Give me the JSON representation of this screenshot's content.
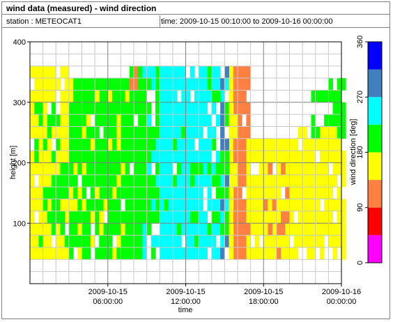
{
  "header": {
    "title": "wind data (measured) - wind direction",
    "station": "station : METEOCAT1",
    "time_range": "time: 2009-10-15 00:10:00 to 2009-10-16 00:00:00"
  },
  "chart_data": {
    "type": "heatmap",
    "title": "wind data (measured) - wind direction",
    "xlabel": "time",
    "ylabel": "height [m]",
    "colorbar_label": "wind direction [deg]",
    "xlim": [
      0,
      24
    ],
    "ylim": [
      0,
      400
    ],
    "x_ticks": [
      {
        "value": 6,
        "line1": "2009-10-15",
        "line2": "06:00:00"
      },
      {
        "value": 12,
        "line1": "2009-10-15",
        "line2": "12:00:00"
      },
      {
        "value": 18,
        "line1": "2009-10-15",
        "line2": "18:00:00"
      },
      {
        "value": 24,
        "line1": "2009-10-16",
        "line2": "00:00:00"
      }
    ],
    "y_ticks": [
      100,
      200,
      300,
      400
    ],
    "colorbar": {
      "range": [
        0,
        360
      ],
      "ticks": [
        0,
        90,
        180,
        270,
        360
      ],
      "bins": [
        {
          "from": 0,
          "to": 45,
          "color": "#ff00ff"
        },
        {
          "from": 45,
          "to": 90,
          "color": "#ff0000"
        },
        {
          "from": 90,
          "to": 135,
          "color": "#ff8040"
        },
        {
          "from": 135,
          "to": 180,
          "color": "#ffff00"
        },
        {
          "from": 180,
          "to": 225,
          "color": "#00ff00"
        },
        {
          "from": 225,
          "to": 270,
          "color": "#00ffff"
        },
        {
          "from": 270,
          "to": 315,
          "color": "#4080c0"
        },
        {
          "from": 315,
          "to": 360,
          "color": "#0000ff"
        }
      ]
    },
    "grid": true,
    "cell_duration_h": 0.3333,
    "height_levels": {
      "min": 40,
      "max": 360,
      "step": 20
    },
    "regions": [
      {
        "t0": 0,
        "t1": 3.0,
        "h0": 40,
        "h1": 360,
        "dir": 160,
        "density": 0.85
      },
      {
        "t0": 0.3,
        "t1": 3.0,
        "h0": 60,
        "h1": 300,
        "dir": 200,
        "density": 0.4
      },
      {
        "t0": 3.0,
        "t1": 7.5,
        "h0": 40,
        "h1": 340,
        "dir": 200,
        "density": 0.9
      },
      {
        "t0": 3.0,
        "t1": 7.5,
        "h0": 40,
        "h1": 340,
        "dir": 160,
        "density": 0.15
      },
      {
        "t0": 7.5,
        "t1": 8.5,
        "h0": 40,
        "h1": 360,
        "dir": 200,
        "density": 0.95
      },
      {
        "t0": 7.5,
        "t1": 8.5,
        "h0": 300,
        "h1": 360,
        "dir": 110,
        "density": 0.3
      },
      {
        "t0": 8.5,
        "t1": 10.0,
        "h0": 40,
        "h1": 360,
        "dir": 200,
        "density": 0.7
      },
      {
        "t0": 8.5,
        "t1": 10.0,
        "h0": 40,
        "h1": 360,
        "dir": 240,
        "density": 0.35
      },
      {
        "t0": 10.0,
        "t1": 13.5,
        "h0": 40,
        "h1": 360,
        "dir": 245,
        "density": 0.92
      },
      {
        "t0": 10.0,
        "t1": 13.5,
        "h0": 60,
        "h1": 360,
        "dir": 200,
        "density": 0.1
      },
      {
        "t0": 13.5,
        "t1": 15.5,
        "h0": 40,
        "h1": 360,
        "dir": 245,
        "density": 0.6
      },
      {
        "t0": 13.5,
        "t1": 15.5,
        "h0": 40,
        "h1": 360,
        "dir": 200,
        "density": 0.35
      },
      {
        "t0": 14.5,
        "t1": 15.3,
        "h0": 40,
        "h1": 360,
        "dir": 290,
        "density": 0.25
      },
      {
        "t0": 15.3,
        "t1": 15.7,
        "h0": 40,
        "h1": 360,
        "dir": 160,
        "density": 0.9
      },
      {
        "t0": 15.7,
        "t1": 16.8,
        "h0": 40,
        "h1": 360,
        "dir": 110,
        "density": 0.85
      },
      {
        "t0": 16.8,
        "t1": 20.5,
        "h0": 40,
        "h1": 240,
        "dir": 160,
        "density": 0.95
      },
      {
        "t0": 16.8,
        "t1": 20.0,
        "h0": 40,
        "h1": 200,
        "dir": 110,
        "density": 0.12
      },
      {
        "t0": 20.5,
        "t1": 24.0,
        "h0": 40,
        "h1": 260,
        "dir": 160,
        "density": 0.9
      },
      {
        "t0": 21.5,
        "t1": 24.0,
        "h0": 240,
        "h1": 320,
        "dir": 200,
        "density": 0.45
      },
      {
        "t0": 23.0,
        "t1": 24.0,
        "h0": 260,
        "h1": 340,
        "dir": 200,
        "density": 0.6
      }
    ]
  }
}
